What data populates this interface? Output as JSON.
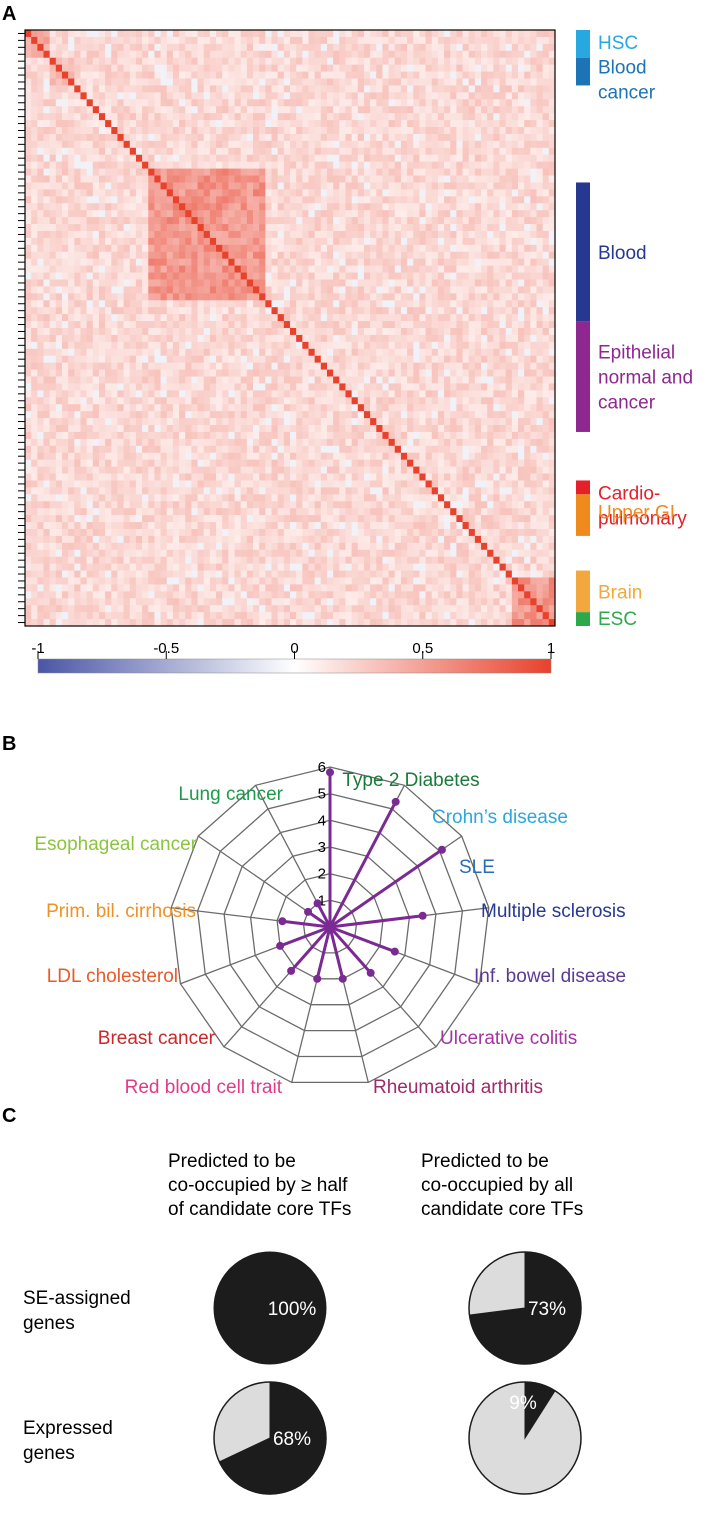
{
  "panels": {
    "a": "A",
    "b": "B",
    "c": "C"
  },
  "chart_data": [
    {
      "type": "heatmap",
      "panel": "A",
      "title": "",
      "matrix_size": 86,
      "value_range": [
        -1,
        1
      ],
      "colorbar": {
        "ticks": [
          -1,
          -0.5,
          0,
          0.5,
          1
        ],
        "tick_labels": [
          "-1",
          "-0.5",
          "0",
          "0.5",
          "1"
        ],
        "colors": {
          "low": "#4a56a6",
          "mid": "#ffffff",
          "high": "#e8412c"
        }
      },
      "groups": [
        {
          "label": "HSC",
          "color": "#28a8e0",
          "start": 0,
          "end": 4
        },
        {
          "label": "Blood\ncancer",
          "color": "#1c73b5",
          "start": 4,
          "end": 8
        },
        {
          "label": "Blood",
          "color": "#273891",
          "start": 22,
          "end": 42
        },
        {
          "label": "Epithelial\nnormal and\ncancer",
          "color": "#8e278f",
          "start": 42,
          "end": 58
        },
        {
          "label": "Cardio-\npulmonary",
          "color": "#e5202b",
          "start": 65,
          "end": 67
        },
        {
          "label": "Upper GI",
          "color": "#f08a1c",
          "start": 67,
          "end": 73
        },
        {
          "label": "Brain",
          "color": "#f2a83c",
          "start": 78,
          "end": 84
        },
        {
          "label": "ESC",
          "color": "#2ea84a",
          "start": 84,
          "end": 86
        }
      ],
      "blocks": [
        {
          "start": 0,
          "end": 4,
          "value": 0.45
        },
        {
          "start": 4,
          "end": 8,
          "value": 0.35
        },
        {
          "start": 20,
          "end": 39,
          "value": 0.55
        },
        {
          "start": 79,
          "end": 86,
          "value": 0.55
        }
      ]
    },
    {
      "type": "radar",
      "panel": "B",
      "title": "",
      "r_ticks": [
        "1",
        "2",
        "3",
        "4",
        "5",
        "6"
      ],
      "r_max": 6,
      "series_color": "#7a2a92",
      "axes": [
        {
          "label": "Type 2 Diabetes",
          "value": 5.8,
          "color": "#1a7a3a"
        },
        {
          "label": "Crohn’s disease",
          "value": 5.3,
          "color": "#2aa8dc"
        },
        {
          "label": "SLE",
          "value": 5.1,
          "color": "#2a6db5"
        },
        {
          "label": "Multiple sclerosis",
          "value": 3.5,
          "color": "#273891"
        },
        {
          "label": "Inf. bowel disease",
          "value": 2.6,
          "color": "#5a3a96"
        },
        {
          "label": "Ulcerative colitis",
          "value": 2.3,
          "color": "#a434a2"
        },
        {
          "label": "Rheumatoid arthritis",
          "value": 2.0,
          "color": "#9e2a6a"
        },
        {
          "label": "Red blood cell trait",
          "value": 2.0,
          "color": "#e23a8a"
        },
        {
          "label": "Breast cancer",
          "value": 2.2,
          "color": "#c8282a"
        },
        {
          "label": "LDL cholesterol",
          "value": 2.0,
          "color": "#e85a2a"
        },
        {
          "label": "Prim. bil. cirrhosis",
          "value": 1.8,
          "color": "#ef9224"
        },
        {
          "label": "Esophageal cancer",
          "value": 1.0,
          "color": "#8cc43f"
        },
        {
          "label": "Lung cancer",
          "value": 1.0,
          "color": "#1f9a4c"
        }
      ]
    },
    {
      "type": "pie",
      "panel": "C",
      "columns": [
        "Predicted to be\nco-occupied by ≥ half\nof candidate core TFs",
        "Predicted to be\nco-occupied by all\ncandidate core TFs"
      ],
      "rows": [
        "SE-assigned\ngenes",
        "Expressed\ngenes"
      ],
      "colors": {
        "fill": "#1c1c1c",
        "rest": "#dcdcdc"
      },
      "pies": [
        {
          "row": 0,
          "col": 0,
          "value": 100,
          "label": "100%"
        },
        {
          "row": 0,
          "col": 1,
          "value": 73,
          "label": "73%"
        },
        {
          "row": 1,
          "col": 0,
          "value": 68,
          "label": "68%"
        },
        {
          "row": 1,
          "col": 1,
          "value": 9,
          "label": "9%"
        }
      ]
    }
  ]
}
